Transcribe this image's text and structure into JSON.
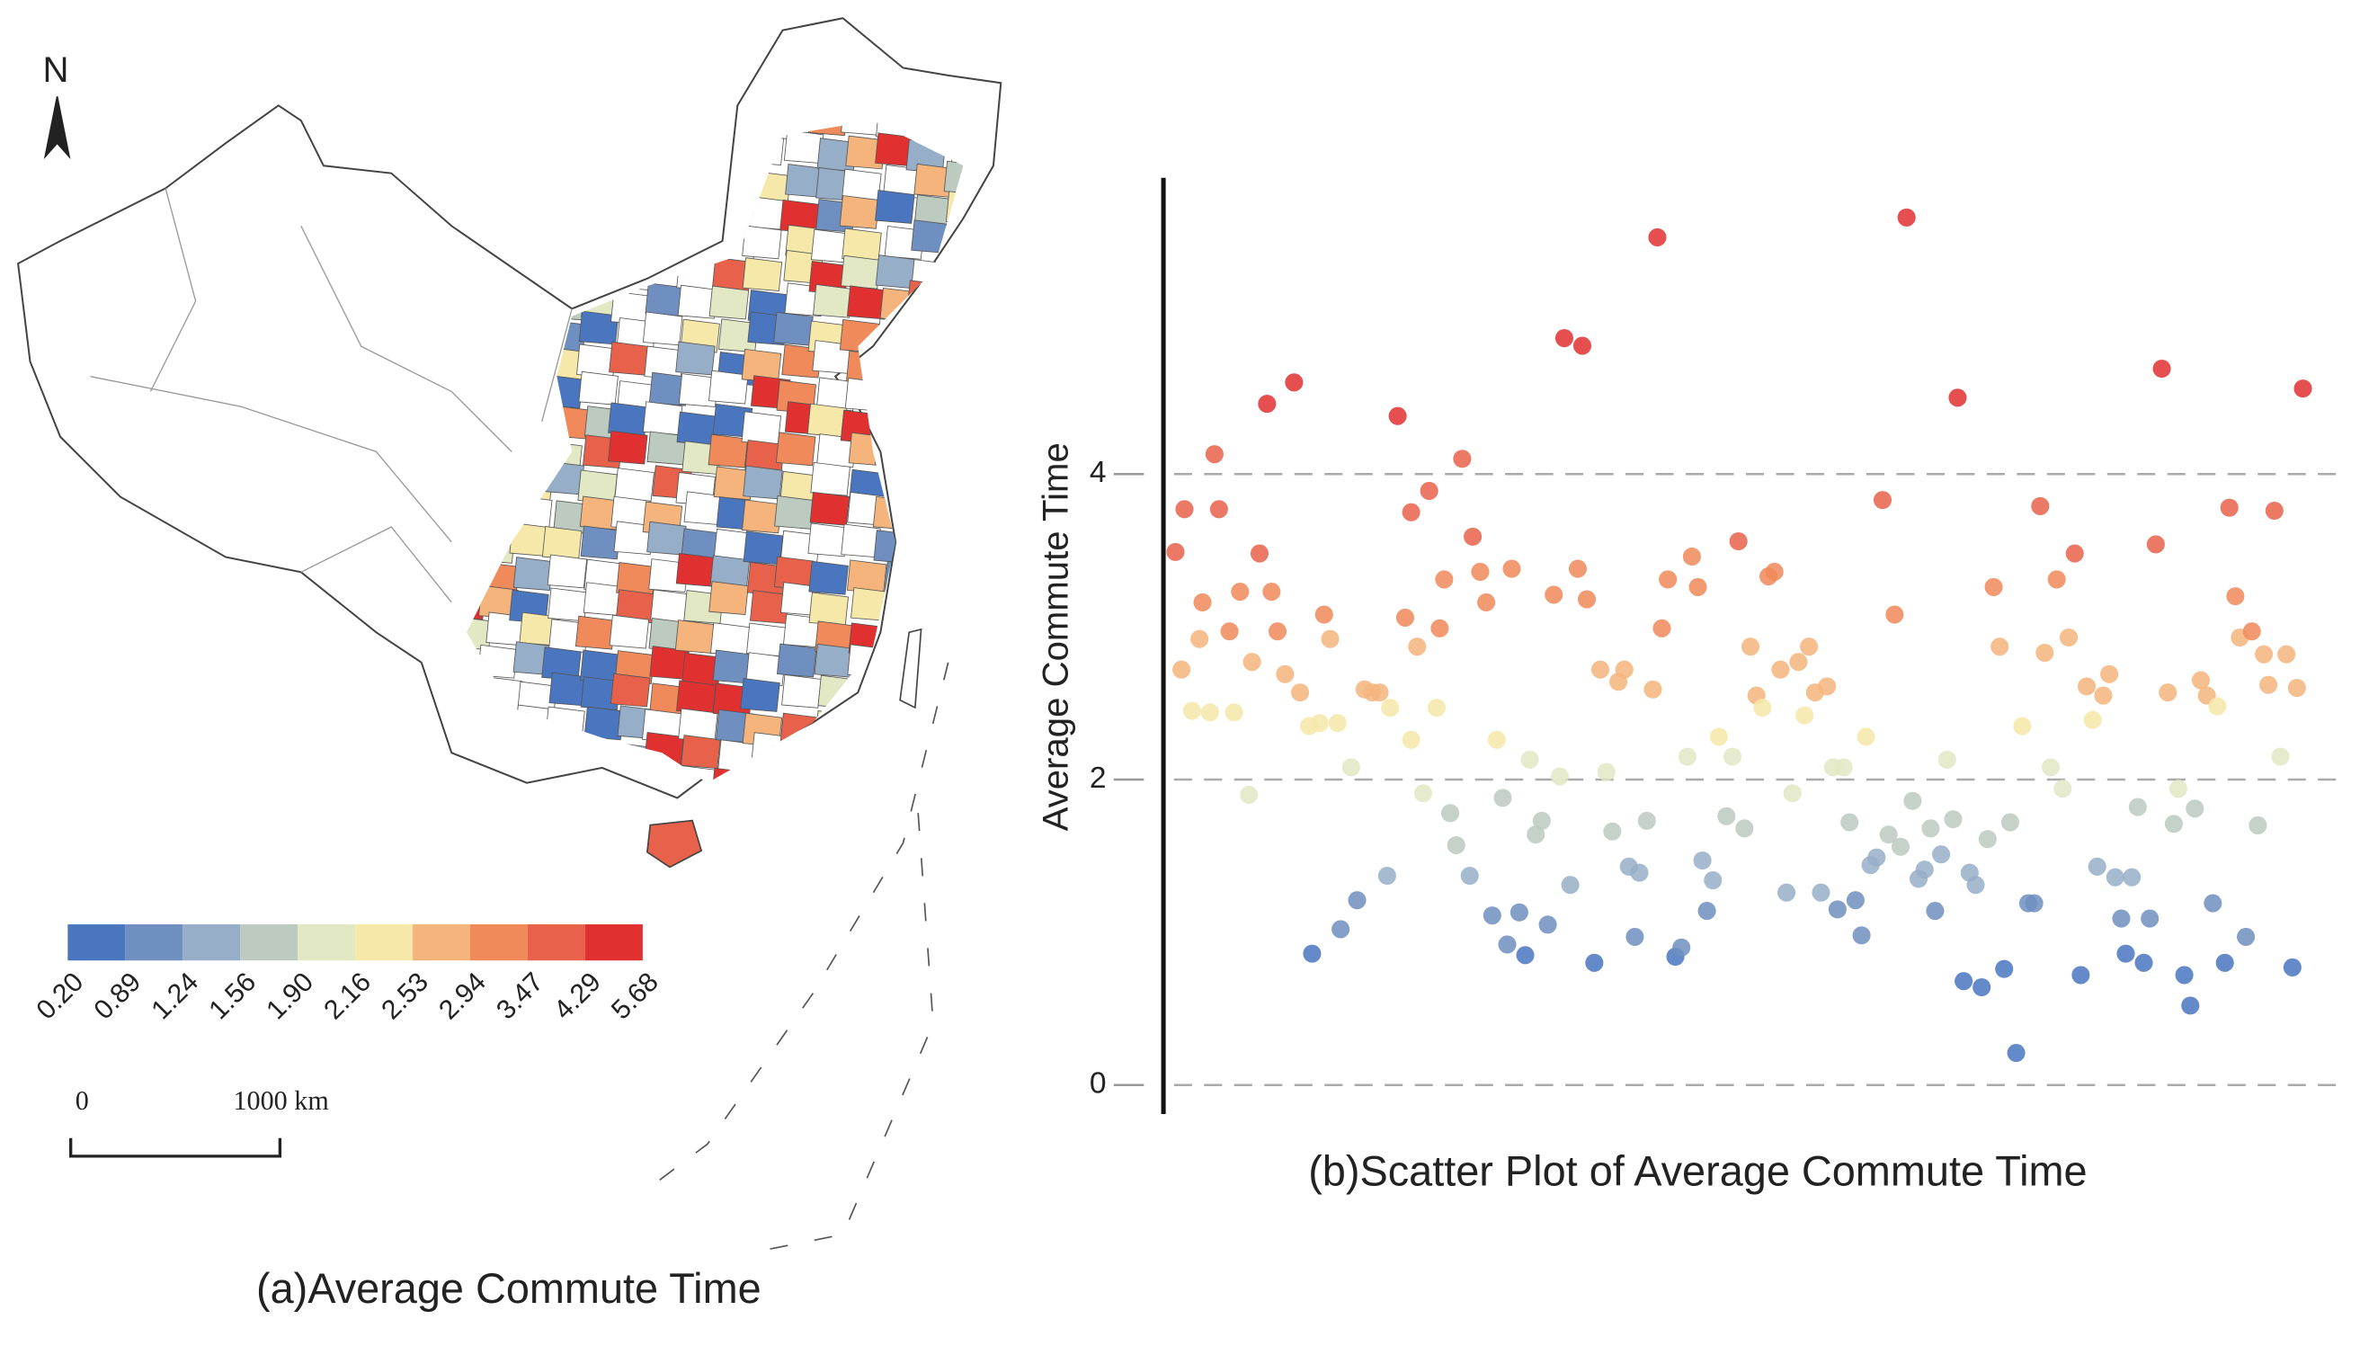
{
  "map": {
    "north": "N",
    "caption": "(a)Average Commute Time",
    "legend": {
      "breaks": [
        {
          "value": 0.2,
          "label": "0.20"
        },
        {
          "value": 0.89,
          "label": "0.89"
        },
        {
          "value": 1.24,
          "label": "1.24"
        },
        {
          "value": 1.56,
          "label": "1.56"
        },
        {
          "value": 1.9,
          "label": "1.90"
        },
        {
          "value": 2.16,
          "label": "2.16"
        },
        {
          "value": 2.53,
          "label": "2.53"
        },
        {
          "value": 2.94,
          "label": "2.94"
        },
        {
          "value": 3.47,
          "label": "3.47"
        },
        {
          "value": 4.29,
          "label": "4.29"
        },
        {
          "value": 5.68,
          "label": "5.68"
        }
      ],
      "colors": [
        "#4a76c0",
        "#6f8fc0",
        "#97aec8",
        "#bccac0",
        "#e2e8c4",
        "#f6e8a8",
        "#f4b47c",
        "#f08a5a",
        "#e8614a",
        "#e03030"
      ]
    },
    "scale_bar": {
      "labels": [
        "0",
        "1000 km"
      ]
    }
  },
  "chart_data": {
    "type": "scatter",
    "caption": "(b)Scatter Plot of Average Commute Time",
    "ylabel": "Average Commute Time",
    "xlim": [
      0,
      787
    ],
    "ylim": [
      -0.19,
      5.94
    ],
    "yticks": [
      0,
      2,
      4
    ],
    "grid": true,
    "x": [
      6,
      12,
      10,
      17,
      22,
      24,
      29,
      32,
      35,
      42,
      45,
      49,
      55,
      57,
      62,
      67,
      70,
      74,
      79,
      85,
      89,
      97,
      95,
      102,
      105,
      109,
      114,
      116,
      123,
      127,
      132,
      137,
      142,
      147,
      149,
      154,
      159,
      163,
      163,
      167,
      171,
      175,
      180,
      182,
      185,
      189,
      193,
      197,
      202,
      204,
      209,
      213,
      217,
      220,
      224,
      227,
      230,
      235,
      239,
      242,
      246,
      250,
      254,
      258,
      262,
      265,
      269,
      274,
      277,
      280,
      285,
      289,
      293,
      297,
      301,
      305,
      308,
      312,
      315,
      320,
      324,
      327,
      330,
      334,
      339,
      343,
      347,
      350,
      354,
      357,
      360,
      364,
      368,
      373,
      377,
      381,
      385,
      389,
      393,
      397,
      401,
      405,
      409,
      413,
      417,
      421,
      425,
      428,
      432,
      436,
      440,
      444,
      447,
      451,
      455,
      459,
      463,
      466,
      469,
      473,
      477,
      481,
      485,
      489,
      493,
      497,
      501,
      505,
      509,
      512,
      516,
      520,
      524,
      527,
      531,
      535,
      539,
      543,
      547,
      551,
      555,
      558,
      562,
      566,
      570,
      574,
      578,
      582,
      585,
      589,
      593,
      597,
      601,
      605,
      609,
      613,
      617,
      620,
      624,
      628,
      632,
      636,
      639,
      643,
      647,
      651,
      655,
      659,
      663,
      667,
      671,
      674,
      678,
      682,
      685,
      689,
      693,
      697,
      700,
      705,
      708,
      712,
      715,
      719,
      723,
      727,
      731,
      734,
      738,
      742,
      746,
      750,
      753,
      757
    ],
    "values": [
      3.49,
      3.77,
      2.72,
      2.45,
      2.92,
      3.16,
      2.44,
      4.13,
      3.77,
      2.97,
      2.44,
      3.23,
      1.9,
      2.77,
      3.48,
      4.46,
      3.23,
      2.97,
      2.69,
      4.6,
      2.57,
      0.86,
      2.35,
      2.37,
      3.08,
      2.92,
      2.37,
      1.02,
      2.08,
      1.21,
      2.59,
      2.57,
      2.57,
      1.37,
      2.47,
      4.38,
      3.06,
      3.75,
      2.26,
      2.87,
      1.91,
      3.89,
      2.47,
      2.99,
      3.31,
      1.78,
      1.57,
      4.1,
      1.37,
      3.59,
      3.36,
      3.16,
      1.11,
      2.26,
      1.88,
      0.92,
      3.38,
      1.13,
      0.85,
      2.13,
      1.64,
      1.73,
      1.05,
      3.21,
      2.02,
      4.89,
      1.31,
      3.38,
      4.84,
      3.18,
      0.8,
      2.72,
      2.05,
      1.66,
      2.64,
      2.72,
      1.43,
      0.97,
      1.39,
      1.73,
      2.59,
      5.55,
      2.99,
      3.31,
      0.84,
      0.9,
      2.15,
      3.46,
      3.26,
      1.47,
      1.14,
      1.34,
      2.28,
      1.76,
      2.15,
      3.56,
      1.68,
      2.87,
      2.55,
      2.47,
      3.33,
      3.36,
      2.72,
      1.26,
      1.91,
      2.77,
      2.42,
      2.87,
      2.57,
      1.26,
      2.61,
      2.08,
      1.15,
      2.08,
      1.72,
      1.21,
      0.98,
      2.28,
      1.44,
      1.49,
      3.83,
      1.64,
      3.08,
      1.56,
      5.68,
      1.86,
      1.35,
      1.41,
      1.68,
      1.14,
      1.51,
      2.13,
      1.74,
      4.5,
      0.68,
      1.39,
      1.31,
      0.64,
      1.61,
      3.26,
      2.87,
      0.76,
      1.72,
      0.21,
      2.35,
      1.19,
      1.19,
      3.79,
      2.83,
      2.08,
      3.31,
      1.94,
      2.93,
      3.48,
      0.72,
      2.61,
      2.39,
      1.43,
      2.55,
      2.69,
      1.36,
      1.09,
      0.86,
      1.36,
      1.82,
      0.8,
      1.09,
      3.54,
      4.69,
      2.57,
      1.71,
      1.94,
      0.72,
      0.52,
      1.81,
      2.65,
      2.55,
      1.19,
      2.48,
      0.8,
      3.78,
      3.2,
      2.93,
      0.97,
      2.97,
      1.7,
      2.82,
      2.62,
      3.76,
      2.15,
      2.82,
      0.77,
      2.6,
      4.56
    ]
  }
}
